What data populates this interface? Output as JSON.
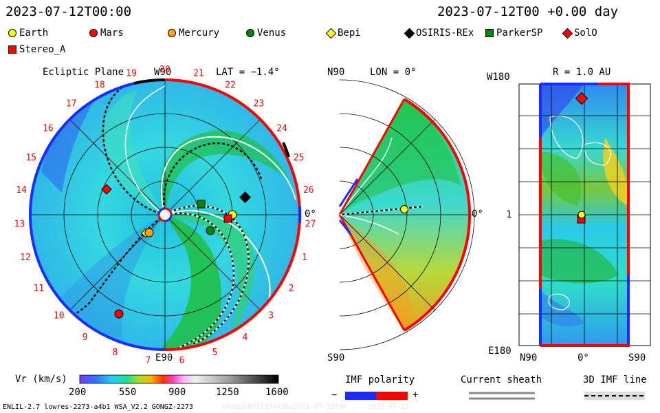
{
  "header": {
    "date_left": "2023-07-12T00:00",
    "date_right": "2023-07-12T00 +0.00 day"
  },
  "legend": [
    {
      "label": "Earth",
      "color": "#ffff00",
      "shape": "circle"
    },
    {
      "label": "Mars",
      "color": "#ff0000",
      "shape": "circle"
    },
    {
      "label": "Mercury",
      "color": "#ffa500",
      "shape": "circle"
    },
    {
      "label": "Venus",
      "color": "#008800",
      "shape": "circle"
    },
    {
      "label": "Bepi",
      "color": "#ffff00",
      "shape": "diamond"
    },
    {
      "label": "OSIRIS-REx",
      "color": "#000000",
      "shape": "diamond"
    },
    {
      "label": "ParkerSP",
      "color": "#008800",
      "shape": "square"
    },
    {
      "label": "SolO",
      "color": "#ff0000",
      "shape": "diamond"
    },
    {
      "label": "Stereo_A",
      "color": "#ff0000",
      "shape": "square"
    }
  ],
  "panels": {
    "ecliptic": {
      "title": "Ecliptic Plane",
      "top_label": "W90",
      "lat_label": "LAT = −1.4°",
      "bottom_label": "E90",
      "right_label": "0°",
      "carrington_ticks": [
        "20",
        "21",
        "22",
        "23",
        "24",
        "25",
        "26",
        "27",
        "1",
        "2",
        "3",
        "4",
        "5",
        "6",
        "7",
        "8",
        "9",
        "10",
        "11",
        "12",
        "13",
        "14",
        "15",
        "16",
        "17",
        "18",
        "19"
      ]
    },
    "meridional": {
      "top_label": "N90",
      "lon_label": "LON = 0°",
      "bottom_label": "S90",
      "right_label": "0°"
    },
    "radial": {
      "title": "R = 1.0 AU",
      "y_top": "W180",
      "y_mid": "1",
      "y_bottom": "E180",
      "x_left": "N90",
      "x_mid": "0°",
      "x_right": "S90"
    }
  },
  "colorbar": {
    "label": "Vr (km/s)",
    "ticks": [
      "200",
      "550",
      "900",
      "1250",
      "1600"
    ]
  },
  "imf": {
    "label": "IMF polarity",
    "minus": "−",
    "plus": "+"
  },
  "sheath": {
    "label": "Current sheath"
  },
  "imf3d": {
    "label": "3D IMF line"
  },
  "footer": {
    "left": "ENLIL-2.7 lowres-2273-a4b1 WSA_V2.2 GONGZ-2273",
    "right": "UNIQUE071317462B/2023-07-12T00 ... 2023-07-12"
  }
}
